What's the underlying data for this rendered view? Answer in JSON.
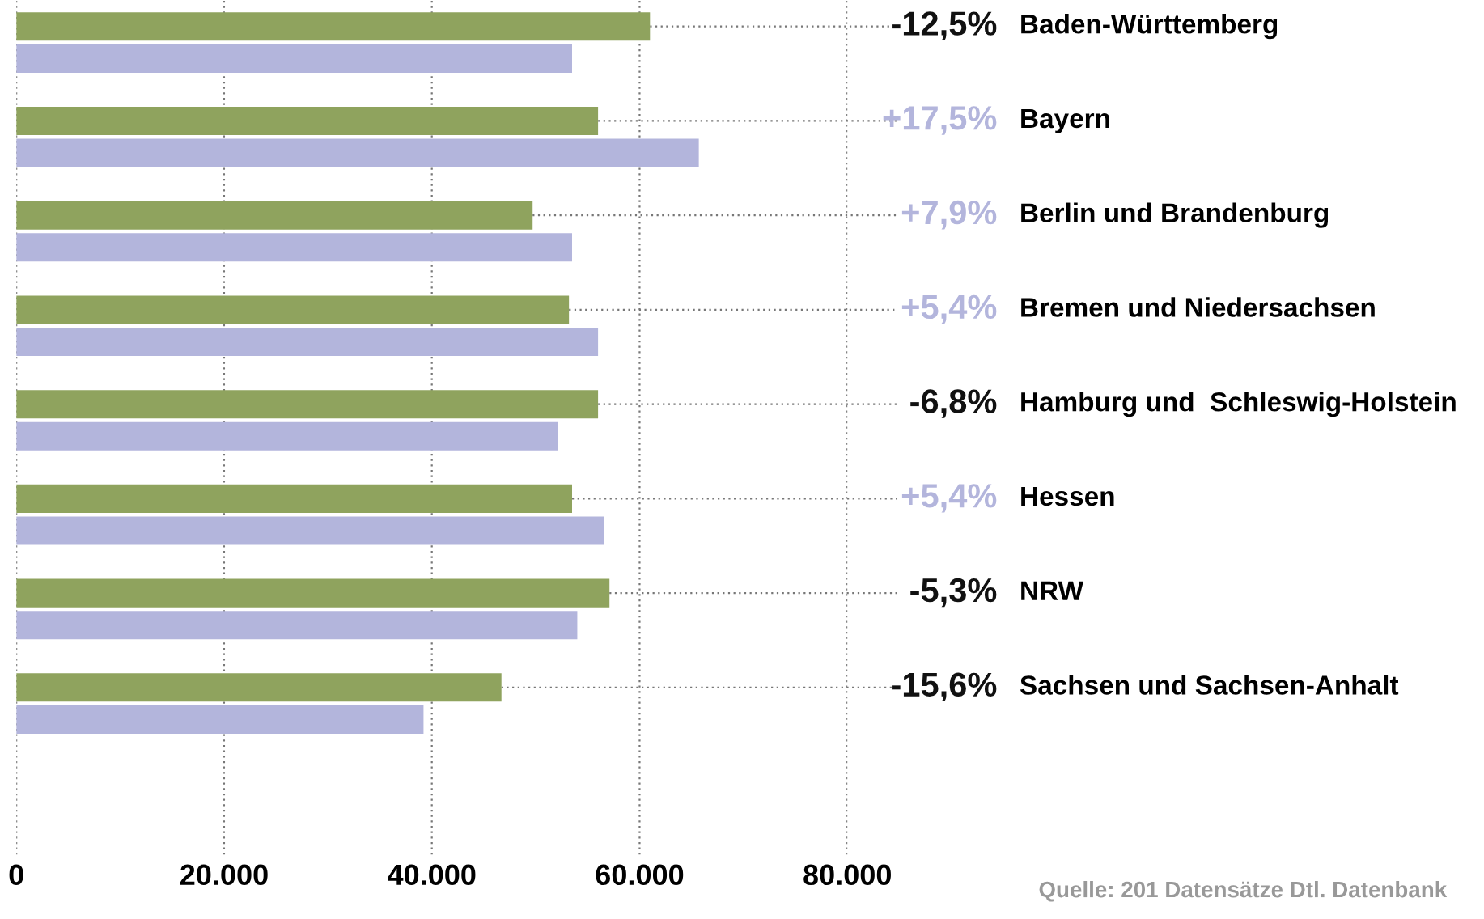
{
  "chart_data": {
    "type": "bar",
    "orientation": "horizontal",
    "categories": [
      "Baden-Württemberg",
      "Bayern",
      "Berlin und Brandenburg",
      "Bremen und Niedersachsen",
      "Hamburg und  Schleswig-Holstein",
      "Hessen",
      "NRW",
      "Sachsen und Sachsen-Anhalt"
    ],
    "series": [
      {
        "color": "#8fa35e",
        "values": [
          61000,
          56000,
          49700,
          53200,
          56000,
          53500,
          57100,
          46700
        ]
      },
      {
        "color": "#b3b5dc",
        "values": [
          53500,
          65700,
          53500,
          56000,
          52100,
          56600,
          54000,
          39200
        ]
      }
    ],
    "xlim": [
      0,
      80000
    ],
    "xticks": [
      0,
      {
        "value": 20000,
        "label": "20.000"
      },
      {
        "value": 40000,
        "label": "40.000"
      },
      {
        "value": 60000,
        "label": "60.000"
      },
      {
        "value": 80000,
        "label": "80.000"
      }
    ],
    "grid": "x",
    "annotations": [
      {
        "text": "-12,5%",
        "x": 61000,
        "y": "Baden-Württemberg"
      },
      {
        "text": "+17,5%",
        "x": 56000,
        "y": "Bayern"
      },
      {
        "text": "+7,9%",
        "x": 49700,
        "y": "Berlin und Brandenburg"
      },
      {
        "text": "+5,4%",
        "x": 53200,
        "y": "Bremen und Niedersachsen"
      },
      {
        "text": "-6,8%",
        "x": 56000,
        "y": "Hamburg und  Schleswig-Holstein"
      },
      {
        "text": "+5,4%",
        "x": 53500,
        "y": "Hessen"
      },
      {
        "text": "-5,3%",
        "x": 57100,
        "y": "NRW"
      },
      {
        "text": "-15,6%",
        "x": 46700,
        "y": "Sachsen und Sachsen-Anhalt"
      },
      "Quelle: 201 Datensätze Dtl. Datenbank"
    ]
  }
}
